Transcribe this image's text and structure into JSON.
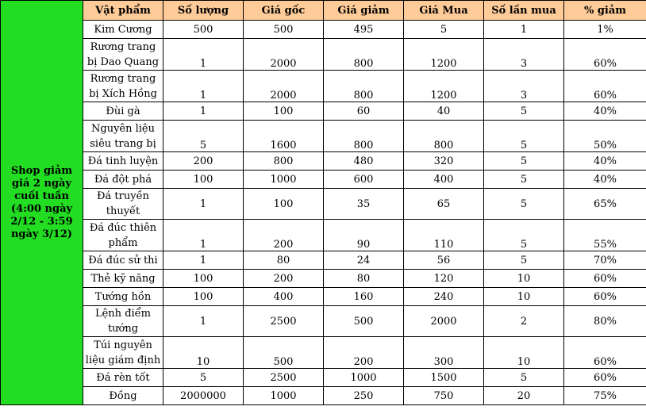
{
  "side_label": "Shop giảm giá 2 ngày cuối tuần (4:00 ngày 2/12 - 3:59 ngày 3/12)",
  "headers": [
    "Vật phẩm",
    "Số lượng",
    "Giá gốc",
    "Giá giảm",
    "Giá Mua",
    "Số lần mua",
    "% giảm"
  ],
  "rows": [
    {
      "item": "Kim Cương",
      "qty": "500",
      "orig": "500",
      "disc": "495",
      "buy": "5",
      "times": "1",
      "pct": "1%"
    },
    {
      "item": "Rương trang bị Dao Quang",
      "qty": "1",
      "orig": "2000",
      "disc": "800",
      "buy": "1200",
      "times": "3",
      "pct": "60%"
    },
    {
      "item": "Rương trang bị Xích Hồng",
      "qty": "1",
      "orig": "2000",
      "disc": "800",
      "buy": "1200",
      "times": "3",
      "pct": "60%"
    },
    {
      "item": "Đùi gà",
      "qty": "1",
      "orig": "100",
      "disc": "60",
      "buy": "40",
      "times": "5",
      "pct": "40%"
    },
    {
      "item": "Nguyên liệu siêu trang bị",
      "qty": "5",
      "orig": "1600",
      "disc": "800",
      "buy": "800",
      "times": "5",
      "pct": "50%"
    },
    {
      "item": "Đá tinh luyện",
      "qty": "200",
      "orig": "800",
      "disc": "480",
      "buy": "320",
      "times": "5",
      "pct": "40%"
    },
    {
      "item": "Đá đột phá",
      "qty": "100",
      "orig": "1000",
      "disc": "600",
      "buy": "400",
      "times": "5",
      "pct": "40%"
    },
    {
      "item": "Đá truyền thuyết",
      "qty": "1",
      "orig": "100",
      "disc": "35",
      "buy": "65",
      "times": "5",
      "pct": "65%"
    },
    {
      "item": "Đá đúc thiên phẩm",
      "qty": "1",
      "orig": "200",
      "disc": "90",
      "buy": "110",
      "times": "5",
      "pct": "55%"
    },
    {
      "item": "Đá đúc sử thi",
      "qty": "1",
      "orig": "80",
      "disc": "24",
      "buy": "56",
      "times": "5",
      "pct": "70%"
    },
    {
      "item": "Thẻ kỹ năng",
      "qty": "100",
      "orig": "200",
      "disc": "80",
      "buy": "120",
      "times": "10",
      "pct": "60%"
    },
    {
      "item": "Tướng hồn",
      "qty": "100",
      "orig": "400",
      "disc": "160",
      "buy": "240",
      "times": "10",
      "pct": "60%"
    },
    {
      "item": "Lệnh điểm tướng",
      "qty": "1",
      "orig": "2500",
      "disc": "500",
      "buy": "2000",
      "times": "2",
      "pct": "80%"
    },
    {
      "item": "Túi nguyên liệu giám định",
      "qty": "10",
      "orig": "500",
      "disc": "200",
      "buy": "300",
      "times": "10",
      "pct": "60%"
    },
    {
      "item": "Đá rèn tốt",
      "qty": "5",
      "orig": "2500",
      "disc": "1000",
      "buy": "1500",
      "times": "5",
      "pct": "60%"
    },
    {
      "item": "Đồng",
      "qty": "2000000",
      "orig": "1000",
      "disc": "250",
      "buy": "750",
      "times": "20",
      "pct": "75%"
    }
  ]
}
